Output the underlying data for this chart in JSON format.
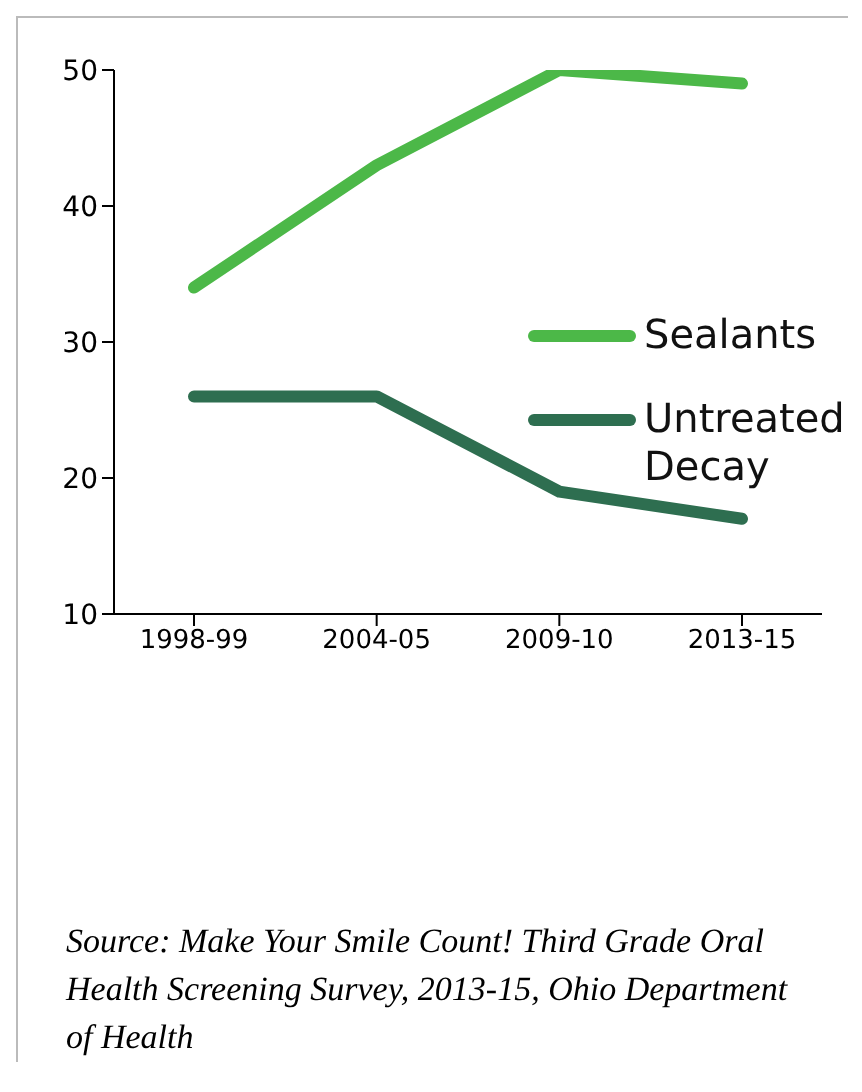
{
  "chart_data": {
    "type": "line",
    "categories": [
      "1998-99",
      "2004-05",
      "2009-10",
      "2013-15"
    ],
    "series": [
      {
        "name": "Sealants",
        "color": "#4cb848",
        "values": [
          34,
          43,
          50,
          49
        ]
      },
      {
        "name": "Untreated Decay",
        "color": "#2e6e50",
        "values": [
          26,
          26,
          19,
          17
        ]
      }
    ],
    "ylim": [
      10,
      50
    ],
    "yticks": [
      10,
      20,
      30,
      40,
      50
    ],
    "grid": false,
    "legend": "right",
    "annotations": [
      "Source: Make Your Smile Count! Third Grade Oral Health Screening Survey, 2013-15, Ohio Department of Health"
    ]
  }
}
